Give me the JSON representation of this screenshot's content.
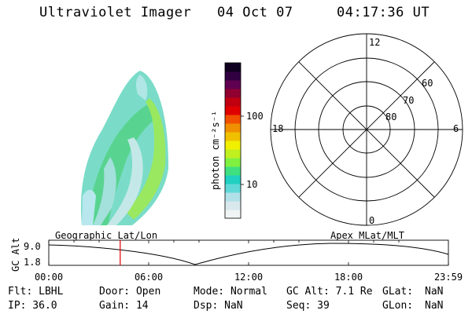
{
  "header": {
    "title": "Ultraviolet Imager",
    "date": "04 Oct 07",
    "time": "04:17:36 UT"
  },
  "colorbar": {
    "label": "photon cm⁻²s⁻¹",
    "ticks": [
      "100",
      "10"
    ],
    "colors": [
      "#f0f4f4",
      "#d8e8ec",
      "#b0e0e8",
      "#60d8d8",
      "#20d0c0",
      "#40e080",
      "#80f040",
      "#c0f020",
      "#f0f000",
      "#f0c000",
      "#f09000",
      "#f05000",
      "#e00000",
      "#c00010",
      "#900030",
      "#600050",
      "#300040",
      "#100020"
    ]
  },
  "polar": {
    "labels": {
      "top": "12",
      "bottom": "0",
      "left": "18",
      "right": "6"
    },
    "rings": [
      "60",
      "70",
      "80"
    ]
  },
  "timeline": {
    "ylabel": "GC Alt",
    "yticks": [
      "9.0",
      "1.8"
    ],
    "left_label": "Geographic Lat/Lon",
    "right_label": "Apex MLat/MLT",
    "xticks": [
      "00:00",
      "06:00",
      "12:00",
      "18:00",
      "23:59"
    ],
    "marker_color": "#e00000",
    "marker_hours": 4.29
  },
  "info": {
    "flt": "Flt: LBHL",
    "ip": "IP: 36.0",
    "door": "Door: Open",
    "gain": "Gain: 14",
    "mode": "Mode: Normal",
    "dsp": "Dsp:     NaN",
    "gcalt": "GC Alt: 7.1 Re",
    "seq": "Seq: 39",
    "glat_label": "GLat:",
    "glat_val": "NaN",
    "glon_label": "GLon:",
    "glon_val": "NaN"
  }
}
